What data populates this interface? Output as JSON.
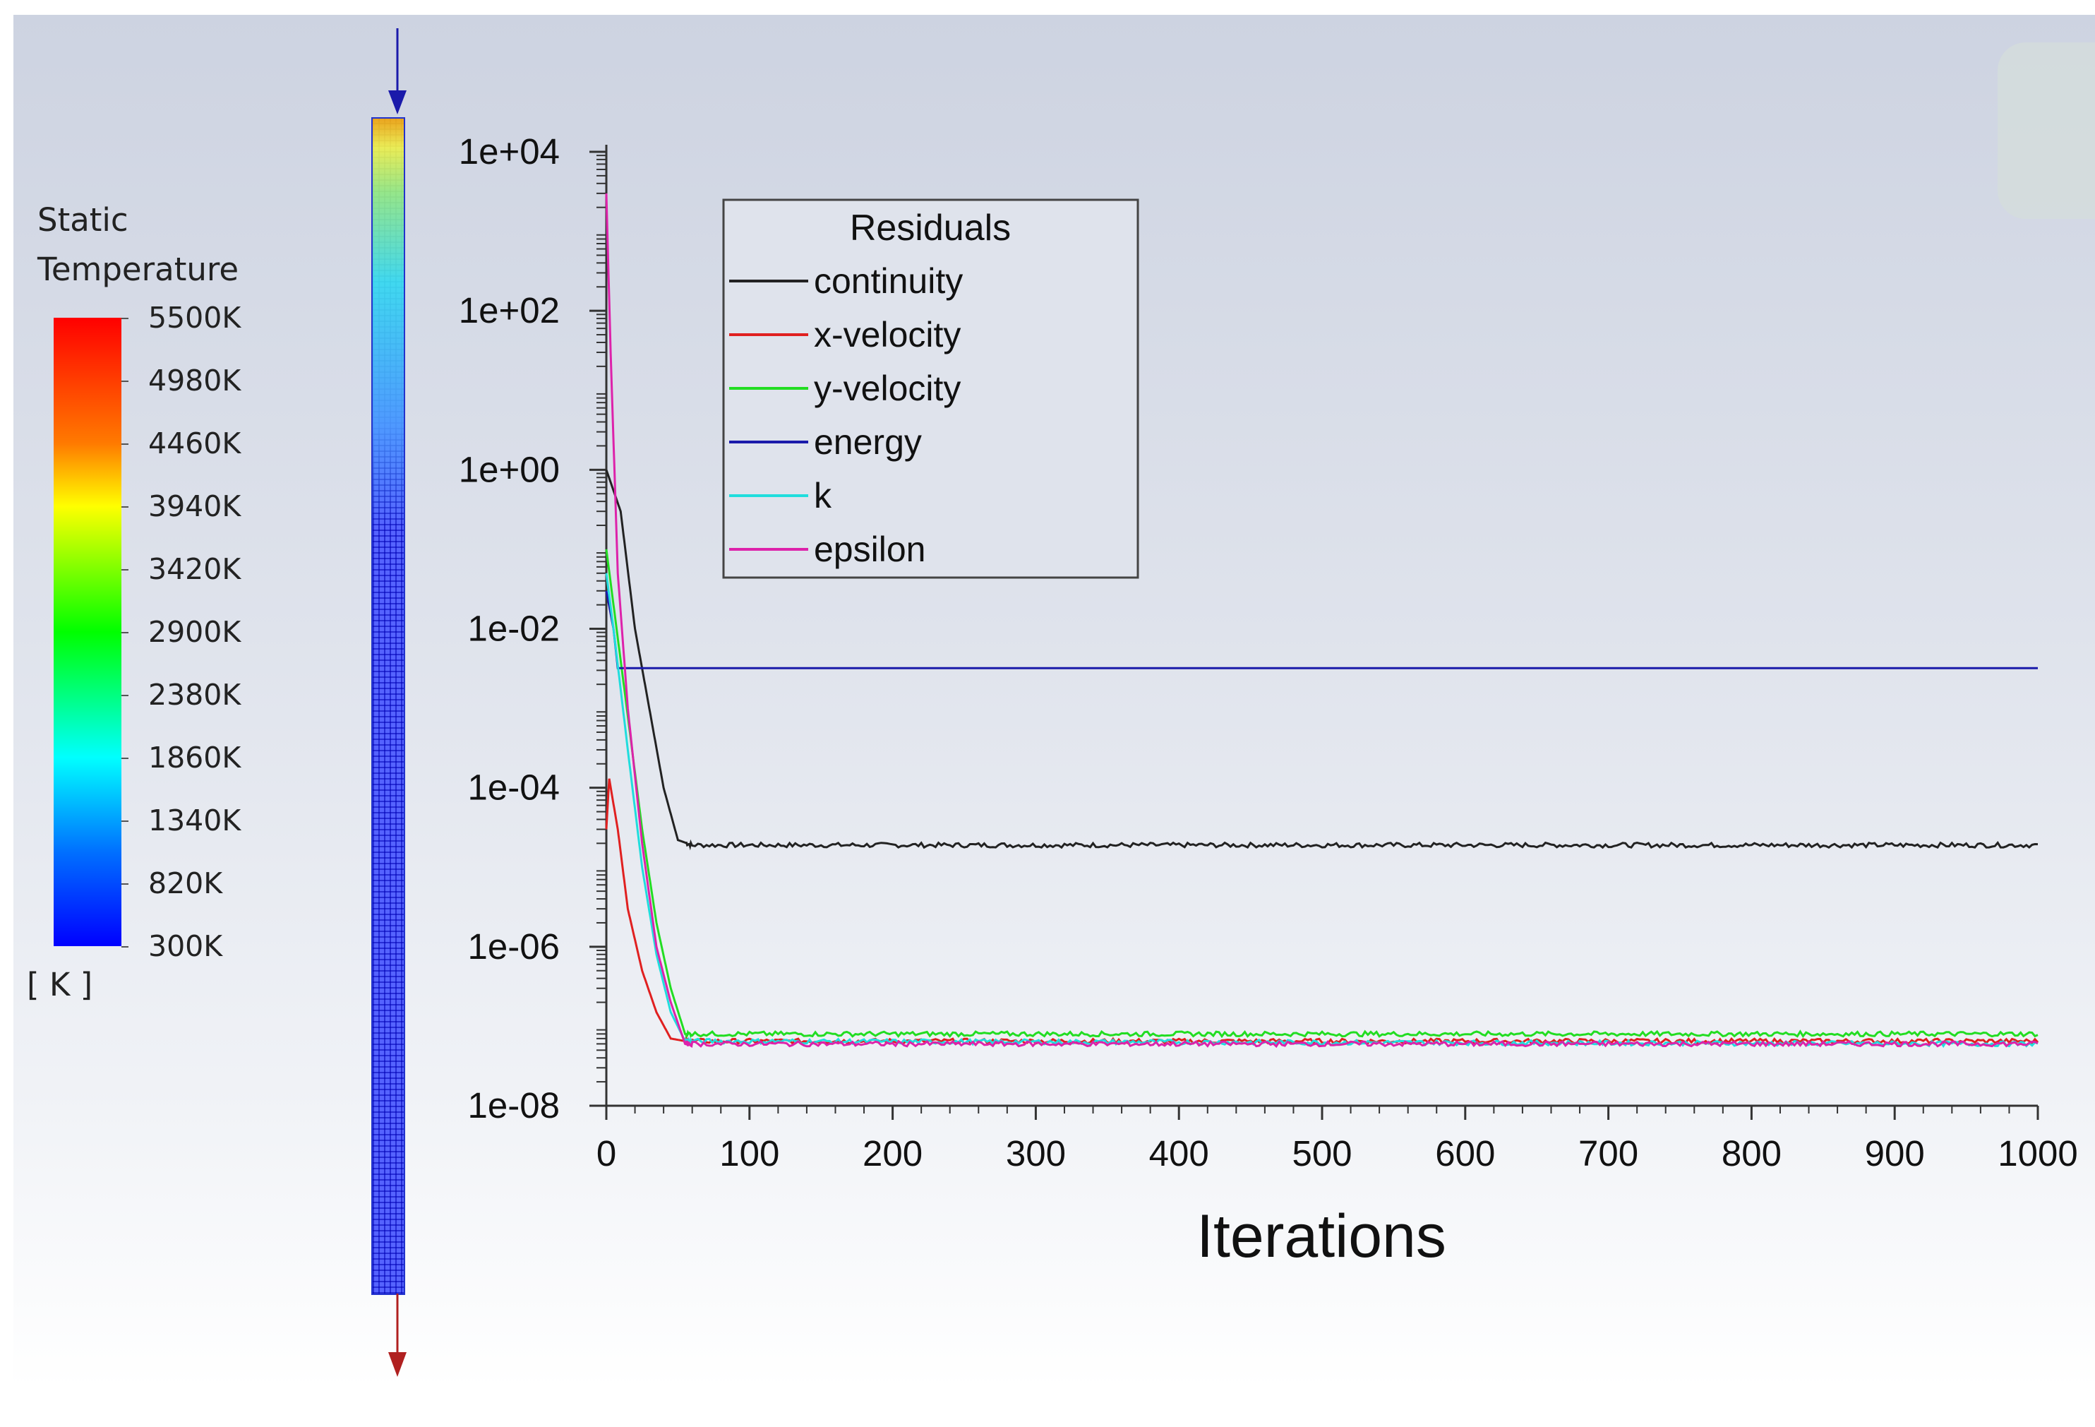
{
  "colorbar": {
    "title_line1": "Static",
    "title_line2": "Temperature",
    "unit": "[ K ]",
    "labels": [
      "5500K",
      "4980K",
      "4460K",
      "3940K",
      "3420K",
      "2900K",
      "2380K",
      "1860K",
      "1340K",
      "820K",
      "300K"
    ],
    "min_value": 300,
    "max_value": 5500,
    "colors": [
      "#ff0000",
      "#ff7a00",
      "#ffff00",
      "#00ff00",
      "#00ffff",
      "#0000ff"
    ]
  },
  "flow_arrows": {
    "inlet_color": "#1a1aaa",
    "outlet_color": "#b02020"
  },
  "chart_data": {
    "type": "line",
    "title": "",
    "xlabel": "Iterations",
    "ylabel": "",
    "xlim": [
      0,
      1000
    ],
    "ylim": [
      1e-08,
      10000
    ],
    "yscale": "log",
    "xticks": [
      0,
      100,
      200,
      300,
      400,
      500,
      600,
      700,
      800,
      900,
      1000
    ],
    "xtick_labels": [
      "0",
      "100",
      "200",
      "300",
      "400",
      "500",
      "600",
      "700",
      "800",
      "900",
      "1000"
    ],
    "yticks": [
      1e-08,
      1e-06,
      0.0001,
      0.01,
      1,
      100,
      10000
    ],
    "ytick_labels": [
      "1e-08",
      "1e-06",
      "1e-04",
      "1e-02",
      "1e+00",
      "1e+02",
      "1e+04"
    ],
    "legend": {
      "title": "Residuals",
      "position": "top-left"
    },
    "series": [
      {
        "name": "continuity",
        "color": "#222222",
        "points": [
          [
            0,
            1.0
          ],
          [
            10,
            0.3
          ],
          [
            20,
            0.01
          ],
          [
            30,
            0.001
          ],
          [
            40,
            0.0001
          ],
          [
            50,
            2.2e-05
          ],
          [
            60,
            1.9e-05
          ],
          [
            1000,
            1.9e-05
          ]
        ],
        "plateau": 1.9e-05
      },
      {
        "name": "x-velocity",
        "color": "#e02020",
        "points": [
          [
            0,
            3e-05
          ],
          [
            2,
            0.00013
          ],
          [
            8,
            3e-05
          ],
          [
            15,
            3e-06
          ],
          [
            25,
            5e-07
          ],
          [
            35,
            1.5e-07
          ],
          [
            45,
            7e-08
          ],
          [
            55,
            6.5e-08
          ],
          [
            1000,
            6.5e-08
          ]
        ],
        "plateau": 6.5e-08
      },
      {
        "name": "y-velocity",
        "color": "#22dd22",
        "points": [
          [
            0,
            0.1
          ],
          [
            5,
            0.02
          ],
          [
            15,
            0.0008
          ],
          [
            25,
            3e-05
          ],
          [
            35,
            2e-06
          ],
          [
            45,
            3e-07
          ],
          [
            55,
            8e-08
          ],
          [
            1000,
            8e-08
          ]
        ],
        "plateau": 8e-08
      },
      {
        "name": "energy",
        "color": "#1a1aaa",
        "points": [
          [
            0,
            0.03
          ],
          [
            5,
            0.01
          ],
          [
            8,
            0.0032
          ],
          [
            1000,
            0.0032
          ]
        ],
        "plateau": 0.0032
      },
      {
        "name": "k",
        "color": "#20dddd",
        "points": [
          [
            0,
            0.05
          ],
          [
            5,
            0.01
          ],
          [
            15,
            0.0003
          ],
          [
            25,
            1e-05
          ],
          [
            35,
            8e-07
          ],
          [
            45,
            1.5e-07
          ],
          [
            55,
            6.5e-08
          ],
          [
            1000,
            6e-08
          ]
        ],
        "plateau": 6e-08
      },
      {
        "name": "epsilon",
        "color": "#dd22aa",
        "points": [
          [
            0,
            3000
          ],
          [
            3,
            30
          ],
          [
            8,
            0.05
          ],
          [
            15,
            0.001
          ],
          [
            25,
            2e-05
          ],
          [
            35,
            1e-06
          ],
          [
            45,
            2e-07
          ],
          [
            55,
            6e-08
          ],
          [
            1000,
            6e-08
          ]
        ],
        "plateau": 6e-08
      }
    ]
  }
}
